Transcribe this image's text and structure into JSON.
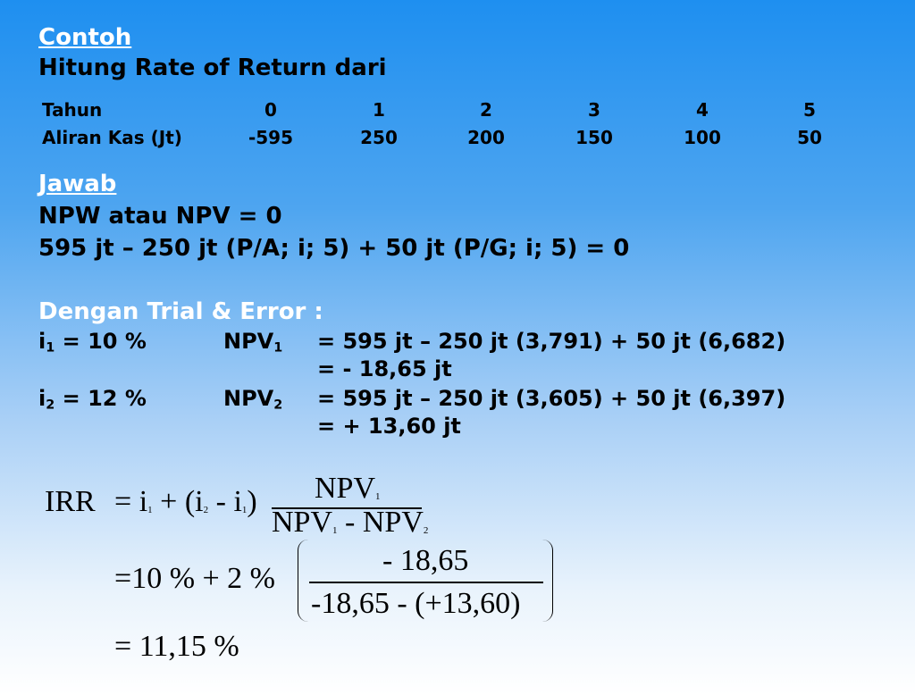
{
  "heading": {
    "contoh": "Contoh",
    "subtitle": "Hitung Rate of Return dari"
  },
  "table": {
    "row1_label": "Tahun",
    "row2_label": "Aliran Kas (Jt)",
    "years": [
      "0",
      "1",
      "2",
      "3",
      "4",
      "5"
    ],
    "cashflow": [
      "-595",
      "250",
      "200",
      "150",
      "100",
      "50"
    ]
  },
  "answer": {
    "jawab": "Jawab",
    "line1": "NPW atau NPV = 0",
    "line2": "595 jt – 250 jt (P/A; i; 5) + 50 jt (P/G; i; 5) = 0"
  },
  "trial": {
    "title": "Dengan Trial & Error :",
    "i1_label": "i",
    "i1_sub": "1",
    "i1_value": " = 10 %",
    "npv1_label": "NPV",
    "npv1_sub": "1",
    "npv1_eq1": "= 595 jt – 250 jt (3,791) + 50 jt (6,682)",
    "npv1_eq2": "= - 18,65 jt",
    "i2_label": "i",
    "i2_sub": "2",
    "i2_value": " = 12 %",
    "npv2_label": "NPV",
    "npv2_sub": "2",
    "npv2_eq1": "= 595 jt – 250 jt (3,605) + 50 jt (6,397)",
    "npv2_eq2": "= + 13,60 jt"
  },
  "formula": {
    "irr": "IRR",
    "eq": "=",
    "i": "i",
    "sub1": "1",
    "sub2": "2",
    "plus": "+",
    "open": "(",
    "close": ")",
    "minus": "-",
    "npv": "NPV",
    "line2_lhs": "10 % + 2 %",
    "line2_num": "- 18,65",
    "line2_den": "-18,65 - (+13,60)",
    "line3": "11,15 %"
  }
}
